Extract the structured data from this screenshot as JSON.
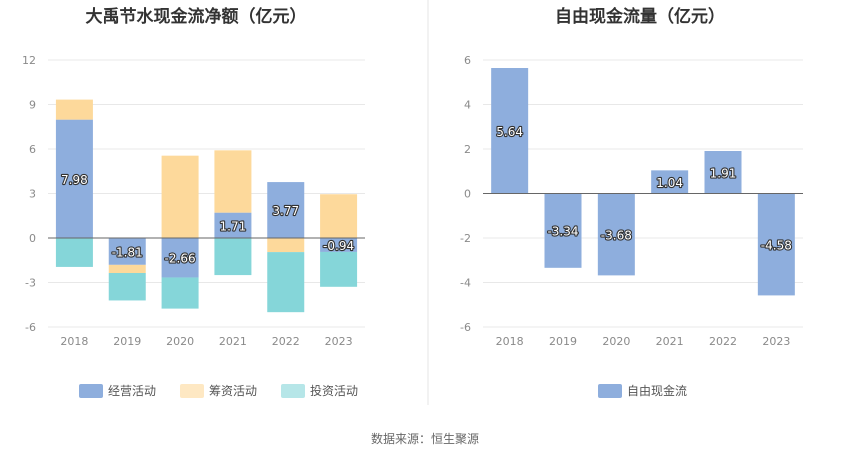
{
  "source": "数据来源：恒生聚源",
  "chart_data": [
    {
      "type": "bar",
      "stacked": true,
      "title": "大禹节水现金流净额（亿元）",
      "categories": [
        "2018",
        "2019",
        "2020",
        "2021",
        "2022",
        "2023"
      ],
      "ylim": [
        -6,
        12
      ],
      "yticks": [
        -6,
        -3,
        0,
        3,
        6,
        9,
        12
      ],
      "grid": true,
      "legend_position": "bottom",
      "series": [
        {
          "name": "经营活动",
          "color": "#8eaedd",
          "values": [
            7.98,
            -1.81,
            -2.66,
            1.71,
            3.77,
            -0.94
          ]
        },
        {
          "name": "筹资活动",
          "color": "#fdd99b",
          "values": [
            1.35,
            -0.55,
            5.55,
            4.2,
            -0.95,
            2.95
          ]
        },
        {
          "name": "投资活动",
          "color": "#85d6d9",
          "values": [
            -1.95,
            -1.85,
            -2.1,
            -2.5,
            -4.05,
            -2.35
          ]
        }
      ],
      "data_labels": [
        "7.98",
        "-1.81",
        "-2.66",
        "1.71",
        "3.77",
        "-0.94"
      ]
    },
    {
      "type": "bar",
      "title": "自由现金流量（亿元）",
      "categories": [
        "2018",
        "2019",
        "2020",
        "2021",
        "2022",
        "2023"
      ],
      "ylim": [
        -6,
        6
      ],
      "yticks": [
        -6,
        -4,
        -2,
        0,
        2,
        4,
        6
      ],
      "grid": true,
      "legend_position": "bottom",
      "series": [
        {
          "name": "自由现金流",
          "color": "#8eaedd",
          "values": [
            5.64,
            -3.34,
            -3.68,
            1.04,
            1.91,
            -4.58
          ]
        }
      ],
      "data_labels": [
        "5.64",
        "-3.34",
        "-3.68",
        "1.04",
        "1.91",
        "-4.58"
      ]
    }
  ]
}
